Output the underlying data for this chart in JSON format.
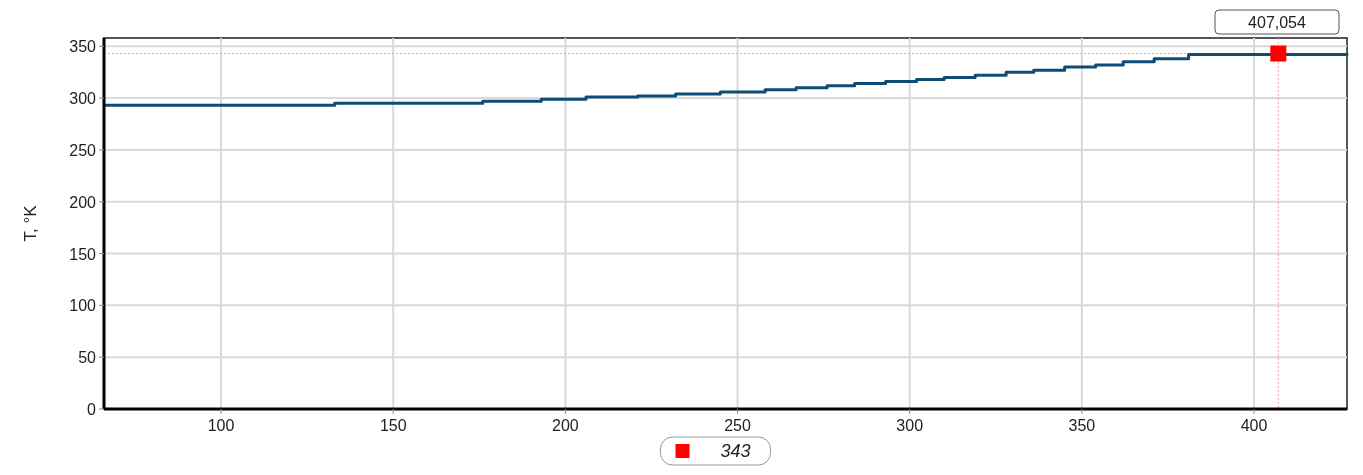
{
  "chart_data": {
    "type": "step",
    "ylabel": "T, °K",
    "xlim": [
      66,
      427
    ],
    "ylim": [
      0,
      358
    ],
    "xticks": [
      100,
      150,
      200,
      250,
      300,
      350,
      400
    ],
    "yticks": [
      0,
      50,
      100,
      150,
      200,
      250,
      300,
      350
    ],
    "grid": true,
    "series": [
      {
        "color": "#0f4c75",
        "x": [
          66,
          133,
          176,
          193,
          206,
          221,
          232,
          245,
          258,
          267,
          276,
          284,
          293,
          302,
          310,
          319,
          328,
          336,
          345,
          354,
          362,
          371,
          381,
          427
        ],
        "values": [
          293,
          295,
          297,
          299,
          301,
          302,
          304,
          306,
          308,
          310,
          312,
          314,
          316,
          318,
          320,
          322,
          325,
          327,
          330,
          332,
          335,
          338,
          342,
          343
        ]
      },
      {
        "type": "scatter",
        "color": "#ff0000",
        "marker": "square",
        "x": [
          407.054
        ],
        "values": [
          343
        ]
      }
    ],
    "ref_lines": [
      {
        "axis": "x",
        "value": 407.054,
        "label": "407,054",
        "color": "#ff9999",
        "line_style": "dotted"
      },
      {
        "axis": "y",
        "value": 343,
        "color": "#ff9999",
        "line_style": "dotted"
      }
    ],
    "annotations": [
      "343"
    ]
  }
}
